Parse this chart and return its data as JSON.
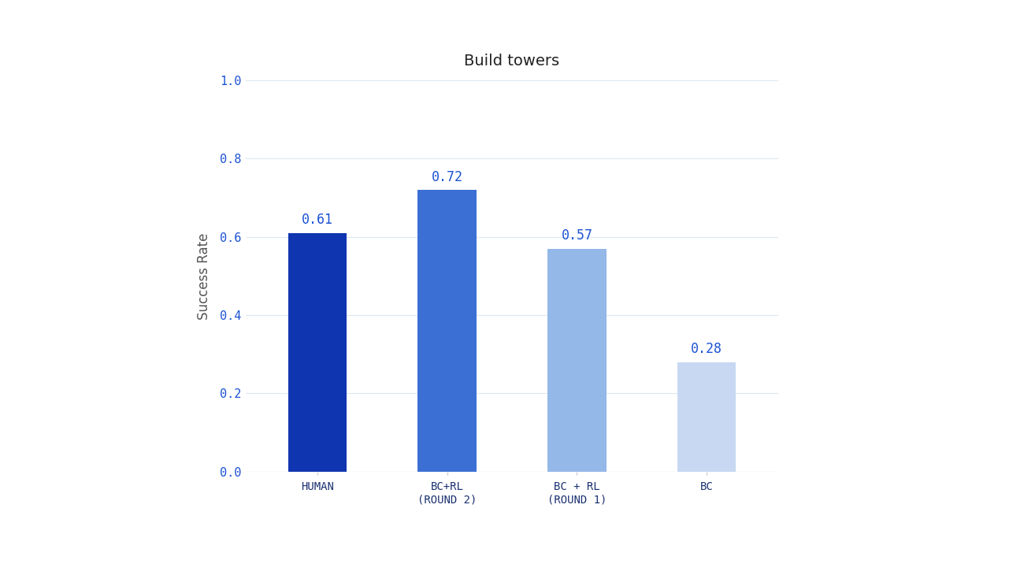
{
  "title": "Build towers",
  "categories": [
    "HUMAN",
    "BC+RL\n(ROUND 2)",
    "BC + RL\n(ROUND 1)",
    "BC"
  ],
  "values": [
    0.61,
    0.72,
    0.57,
    0.28
  ],
  "bar_colors": [
    "#1035b1",
    "#3b6fd4",
    "#94b8e8",
    "#c8d8f2"
  ],
  "value_color": "#1a52d4",
  "ylabel": "Success Rate",
  "ylim": [
    0.0,
    1.0
  ],
  "yticks": [
    0.0,
    0.2,
    0.4,
    0.6,
    0.8,
    1.0
  ],
  "background_color": "#ffffff",
  "plot_bg_color": "#ffffff",
  "grid_color": "#dce6f0",
  "title_fontsize": 14,
  "ylabel_fontsize": 12,
  "tick_fontsize": 11,
  "value_fontsize": 12,
  "bar_width": 0.45,
  "title_color": "#222222",
  "tick_color": "#1a52d4",
  "xlabel_color": "#1a3070"
}
